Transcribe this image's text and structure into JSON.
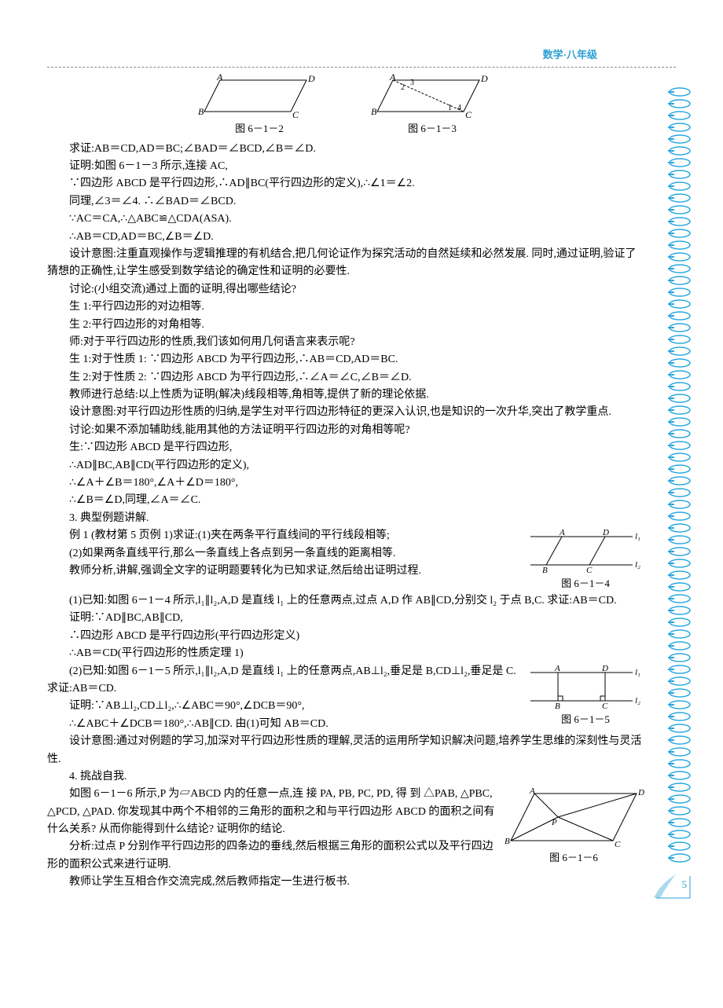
{
  "header": "数学·八年级",
  "fig_612_caption": "图 6－1－2",
  "fig_613_caption": "图 6－1－3",
  "fig_614_caption": "图 6－1－4",
  "fig_615_caption": "图 6－1－5",
  "fig_616_caption": "图 6－1－6",
  "lines": {
    "l01": "求证:AB＝CD,AD＝BC;∠BAD＝∠BCD,∠B＝∠D.",
    "l02": "证明:如图 6－1－3 所示,连接 AC,",
    "l03": "∵四边形 ABCD 是平行四边形,∴AD∥BC(平行四边形的定义),∴∠1＝∠2.",
    "l04": "同理,∠3＝∠4. ∴∠BAD＝∠BCD.",
    "l05": "∵AC＝CA,∴△ABC≌△CDA(ASA).",
    "l06": "∴AB＝CD,AD＝BC,∠B＝∠D.",
    "l07": "设计意图:注重直观操作与逻辑推理的有机结合,把几何论证作为探究活动的自然延续和必然发展. 同时,通过证明,验证了猜想的正确性,让学生感受到数学结论的确定性和证明的必要性.",
    "l08": "讨论:(小组交流)通过上面的证明,得出哪些结论?",
    "l09": "生 1:平行四边形的对边相等.",
    "l10": "生 2:平行四边形的对角相等.",
    "l11": "师:对于平行四边形的性质,我们该如何用几何语言来表示呢?",
    "l12": "生 1:对于性质 1: ∵四边形 ABCD 为平行四边形,∴AB＝CD,AD＝BC.",
    "l13": "生 2:对于性质 2: ∵四边形 ABCD 为平行四边形,∴∠A＝∠C,∠B＝∠D.",
    "l14": "教师进行总结:以上性质为证明(解决)线段相等,角相等,提供了新的理论依据.",
    "l15": "设计意图:对平行四边形性质的归纳,是学生对平行四边形特征的更深入认识,也是知识的一次升华,突出了教学重点.",
    "l16": "讨论:如果不添加辅助线,能用其他的方法证明平行四边形的对角相等呢?",
    "l17": "生:∵四边形 ABCD 是平行四边形,",
    "l18": "∴AD∥BC,AB∥CD(平行四边形的定义),",
    "l19": "∴∠A＋∠B＝180°,∠A＋∠D＝180°,",
    "l20": "∴∠B＝∠D,同理,∠A＝∠C.",
    "l21": "3. 典型例题讲解.",
    "l22": "例 1 (教材第 5 页例 1)求证:(1)夹在两条平行直线间的平行线段相等;",
    "l23": "(2)如果两条直线平行,那么一条直线上各点到另一条直线的距离相等.",
    "l24": "教师分析,讲解,强调全文字的证明题要转化为已知求证,然后给出证明过程.",
    "l25": "(1)已知:如图 6－1－4 所示,l₁∥l₂,A,D 是直线 l₁ 上的任意两点,过点 A,D 作 AB∥CD,分别交 l₂ 于点 B,C. 求证:AB＝CD.",
    "l26": "证明:∵AD∥BC,AB∥CD,",
    "l27": "∴四边形 ABCD 是平行四边形(平行四边形定义)",
    "l28": "∴AB＝CD(平行四边形的性质定理 1)",
    "l29": "(2)已知:如图 6－1－5 所示,l₁∥l₂,A,D 是直线 l₁ 上的任意两点,AB⊥l₂,垂足是 B,CD⊥l₂,垂足是 C. 求证:AB＝CD.",
    "l30": "证明:∵AB⊥l₂,CD⊥l₂,∴∠ABC＝90°,∠DCB＝90°,",
    "l31": "∴∠ABC＋∠DCB＝180°,∴AB∥CD. 由(1)可知 AB＝CD.",
    "l32": "设计意图:通过对例题的学习,加深对平行四边形性质的理解,灵活的运用所学知识解决问题,培养学生思维的深刻性与灵活性.",
    "l33": "4. 挑战自我.",
    "l34": "如图 6－1－6 所示,P 为▱ABCD 内的任意一点,连 接 PA, PB, PC, PD, 得 到 △PAB, △PBC, △PCD, △PAD. 你发现其中两个不相邻的三角形的面积之和与平行四边形 ABCD 的面积之间有什么关系? 从而你能得到什么结论? 证明你的结论.",
    "l35": "分析:过点 P 分别作平行四边形的四条边的垂线,然后根据三角形的面积公式以及平行四边形的面积公式来进行证明.",
    "l36": "教师让学生互相合作交流完成,然后教师指定一生进行板书."
  },
  "pagenum": "5",
  "colors": {
    "accent": "#2aa0d4",
    "line": "#000000",
    "ring": "#2ba9dd"
  },
  "binding_rings": 66
}
